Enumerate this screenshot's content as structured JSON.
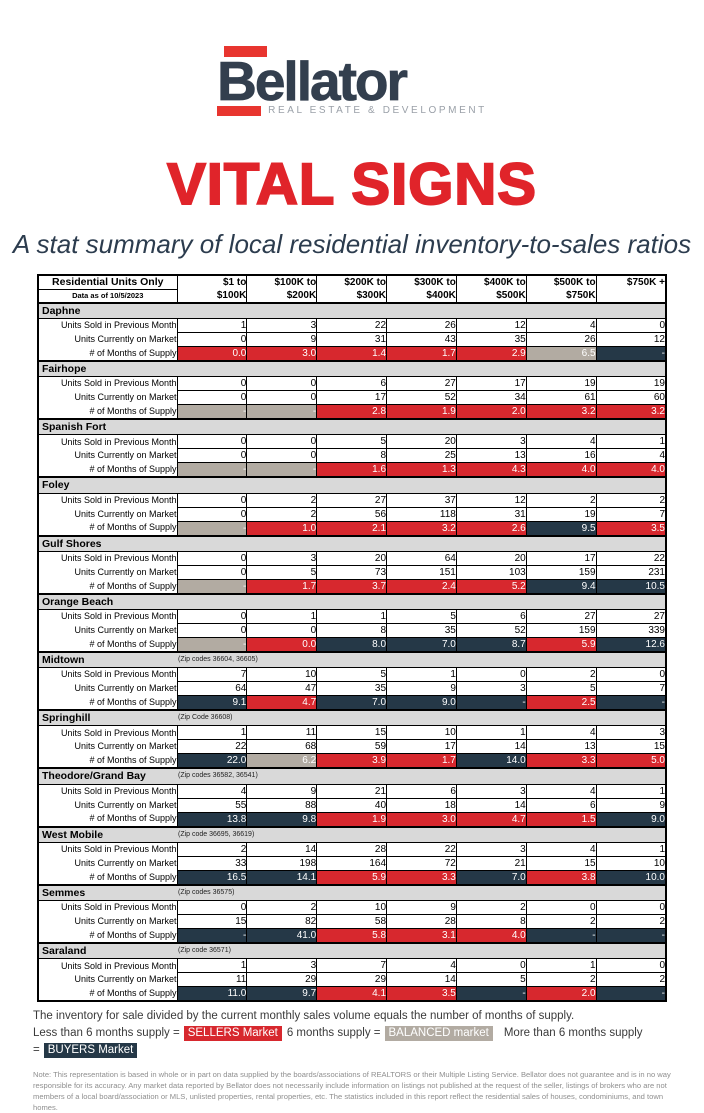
{
  "logo": {
    "name": "Bellator",
    "tagline": "REAL ESTATE & DEVELOPMENT"
  },
  "title": "VITAL SIGNS",
  "subtitle": "A stat summary of local residential inventory-to-sales ratios",
  "colors": {
    "sellers_red": "#d7282e",
    "balanced_tan": "#b2aba2",
    "buyers_navy": "#253847",
    "section_gray": "#d9d9d9",
    "brand_red": "#e0242a",
    "brand_navy": "#333f4e"
  },
  "table": {
    "corner_title": "Residential Units Only",
    "corner_subtitle": "Data as of 10/5/2023",
    "columns": [
      [
        "$1 to",
        "$100K"
      ],
      [
        "$100K to",
        "$200K"
      ],
      [
        "$200K to",
        "$300K"
      ],
      [
        "$300K to",
        "$400K"
      ],
      [
        "$400K to",
        "$500K"
      ],
      [
        "$500K to",
        "$750K"
      ],
      [
        "$750K +",
        ""
      ]
    ],
    "row_labels": [
      "Units Sold in Previous Month",
      "Units Currently on Market",
      "# of Months of Supply"
    ],
    "sections": [
      {
        "name": "Daphne",
        "zip": "",
        "sold": [
          1,
          3,
          22,
          26,
          12,
          4,
          0
        ],
        "market": [
          0,
          9,
          31,
          43,
          35,
          26,
          12
        ],
        "supply": [
          {
            "v": "0.0",
            "m": "sellers"
          },
          {
            "v": "3.0",
            "m": "sellers"
          },
          {
            "v": "1.4",
            "m": "sellers"
          },
          {
            "v": "1.7",
            "m": "sellers"
          },
          {
            "v": "2.9",
            "m": "sellers"
          },
          {
            "v": "6.5",
            "m": "balanced"
          },
          {
            "v": "-",
            "m": "buyers"
          }
        ]
      },
      {
        "name": "Fairhope",
        "zip": "",
        "sold": [
          0,
          0,
          6,
          27,
          17,
          19,
          19
        ],
        "market": [
          0,
          0,
          17,
          52,
          34,
          61,
          60
        ],
        "supply": [
          {
            "v": "-",
            "m": "balanced"
          },
          {
            "v": "-",
            "m": "balanced"
          },
          {
            "v": "2.8",
            "m": "sellers"
          },
          {
            "v": "1.9",
            "m": "sellers"
          },
          {
            "v": "2.0",
            "m": "sellers"
          },
          {
            "v": "3.2",
            "m": "sellers"
          },
          {
            "v": "3.2",
            "m": "sellers"
          }
        ]
      },
      {
        "name": "Spanish Fort",
        "zip": "",
        "sold": [
          0,
          0,
          5,
          20,
          3,
          4,
          1
        ],
        "market": [
          0,
          0,
          8,
          25,
          13,
          16,
          4
        ],
        "supply": [
          {
            "v": "-",
            "m": "balanced"
          },
          {
            "v": "-",
            "m": "balanced"
          },
          {
            "v": "1.6",
            "m": "sellers"
          },
          {
            "v": "1.3",
            "m": "sellers"
          },
          {
            "v": "4.3",
            "m": "sellers"
          },
          {
            "v": "4.0",
            "m": "sellers"
          },
          {
            "v": "4.0",
            "m": "sellers"
          }
        ]
      },
      {
        "name": "Foley",
        "zip": "",
        "sold": [
          0,
          2,
          27,
          37,
          12,
          2,
          2
        ],
        "market": [
          0,
          2,
          56,
          118,
          31,
          19,
          7
        ],
        "supply": [
          {
            "v": "-",
            "m": "balanced"
          },
          {
            "v": "1.0",
            "m": "sellers"
          },
          {
            "v": "2.1",
            "m": "sellers"
          },
          {
            "v": "3.2",
            "m": "sellers"
          },
          {
            "v": "2.6",
            "m": "sellers"
          },
          {
            "v": "9.5",
            "m": "buyers"
          },
          {
            "v": "3.5",
            "m": "sellers"
          }
        ]
      },
      {
        "name": "Gulf Shores",
        "zip": "",
        "sold": [
          0,
          3,
          20,
          64,
          20,
          17,
          22
        ],
        "market": [
          0,
          5,
          73,
          151,
          103,
          159,
          231
        ],
        "supply": [
          {
            "v": "-",
            "m": "balanced"
          },
          {
            "v": "1.7",
            "m": "sellers"
          },
          {
            "v": "3.7",
            "m": "sellers"
          },
          {
            "v": "2.4",
            "m": "sellers"
          },
          {
            "v": "5.2",
            "m": "sellers"
          },
          {
            "v": "9.4",
            "m": "buyers"
          },
          {
            "v": "10.5",
            "m": "buyers"
          }
        ]
      },
      {
        "name": "Orange Beach",
        "zip": "",
        "sold": [
          0,
          1,
          1,
          5,
          6,
          27,
          27
        ],
        "market": [
          0,
          0,
          8,
          35,
          52,
          159,
          339
        ],
        "supply": [
          {
            "v": "-",
            "m": "balanced"
          },
          {
            "v": "0.0",
            "m": "sellers"
          },
          {
            "v": "8.0",
            "m": "buyers"
          },
          {
            "v": "7.0",
            "m": "buyers"
          },
          {
            "v": "8.7",
            "m": "buyers"
          },
          {
            "v": "5.9",
            "m": "sellers"
          },
          {
            "v": "12.6",
            "m": "buyers"
          }
        ]
      },
      {
        "name": "Midtown",
        "zip": "(Zip codes 36604, 36605)",
        "sold": [
          7,
          10,
          5,
          1,
          0,
          2,
          0
        ],
        "market": [
          64,
          47,
          35,
          9,
          3,
          5,
          7
        ],
        "supply": [
          {
            "v": "9.1",
            "m": "buyers"
          },
          {
            "v": "4.7",
            "m": "sellers"
          },
          {
            "v": "7.0",
            "m": "buyers"
          },
          {
            "v": "9.0",
            "m": "buyers"
          },
          {
            "v": "-",
            "m": "buyers"
          },
          {
            "v": "2.5",
            "m": "sellers"
          },
          {
            "v": "-",
            "m": "buyers"
          }
        ]
      },
      {
        "name": "Springhill",
        "zip": "(Zip Code 36608)",
        "sold": [
          1,
          11,
          15,
          10,
          1,
          4,
          3
        ],
        "market": [
          22,
          68,
          59,
          17,
          14,
          13,
          15
        ],
        "supply": [
          {
            "v": "22.0",
            "m": "buyers"
          },
          {
            "v": "6.2",
            "m": "balanced"
          },
          {
            "v": "3.9",
            "m": "sellers"
          },
          {
            "v": "1.7",
            "m": "sellers"
          },
          {
            "v": "14.0",
            "m": "buyers"
          },
          {
            "v": "3.3",
            "m": "sellers"
          },
          {
            "v": "5.0",
            "m": "sellers"
          }
        ]
      },
      {
        "name": "Theodore/Grand Bay",
        "zip": "(Zip codes 36582, 36541)",
        "sold": [
          4,
          9,
          21,
          6,
          3,
          4,
          1
        ],
        "market": [
          55,
          88,
          40,
          18,
          14,
          6,
          9
        ],
        "supply": [
          {
            "v": "13.8",
            "m": "buyers"
          },
          {
            "v": "9.8",
            "m": "buyers"
          },
          {
            "v": "1.9",
            "m": "sellers"
          },
          {
            "v": "3.0",
            "m": "sellers"
          },
          {
            "v": "4.7",
            "m": "sellers"
          },
          {
            "v": "1.5",
            "m": "sellers"
          },
          {
            "v": "9.0",
            "m": "buyers"
          }
        ]
      },
      {
        "name": "West Mobile",
        "zip": "(Zip code 36695, 36619)",
        "sold": [
          2,
          14,
          28,
          22,
          3,
          4,
          1
        ],
        "market": [
          33,
          198,
          164,
          72,
          21,
          15,
          10
        ],
        "supply": [
          {
            "v": "16.5",
            "m": "buyers"
          },
          {
            "v": "14.1",
            "m": "buyers"
          },
          {
            "v": "5.9",
            "m": "sellers"
          },
          {
            "v": "3.3",
            "m": "sellers"
          },
          {
            "v": "7.0",
            "m": "buyers"
          },
          {
            "v": "3.8",
            "m": "sellers"
          },
          {
            "v": "10.0",
            "m": "buyers"
          }
        ]
      },
      {
        "name": "Semmes",
        "zip": "(Zip codes 36575)",
        "sold": [
          0,
          2,
          10,
          9,
          2,
          0,
          0
        ],
        "market": [
          15,
          82,
          58,
          28,
          8,
          2,
          2
        ],
        "supply": [
          {
            "v": "-",
            "m": "buyers"
          },
          {
            "v": "41.0",
            "m": "buyers"
          },
          {
            "v": "5.8",
            "m": "sellers"
          },
          {
            "v": "3.1",
            "m": "sellers"
          },
          {
            "v": "4.0",
            "m": "sellers"
          },
          {
            "v": "-",
            "m": "buyers"
          },
          {
            "v": "-",
            "m": "buyers"
          }
        ]
      },
      {
        "name": "Saraland",
        "zip": "(Zip code 36571)",
        "sold": [
          1,
          3,
          7,
          4,
          0,
          1,
          0
        ],
        "market": [
          11,
          29,
          29,
          14,
          5,
          2,
          2
        ],
        "supply": [
          {
            "v": "11.0",
            "m": "buyers"
          },
          {
            "v": "9.7",
            "m": "buyers"
          },
          {
            "v": "4.1",
            "m": "sellers"
          },
          {
            "v": "3.5",
            "m": "sellers"
          },
          {
            "v": "-",
            "m": "buyers"
          },
          {
            "v": "2.0",
            "m": "sellers"
          },
          {
            "v": "-",
            "m": "buyers"
          }
        ]
      }
    ]
  },
  "legend": {
    "supply_note": "The inventory for sale divided by the current monthly sales volume equals the number of months of supply.",
    "less_text": "Less than 6 months supply =",
    "sellers_label": "SELLERS Market",
    "six_text": "6 months supply =",
    "balanced_label": "BALANCED market",
    "more_text": "More than 6 months supply =",
    "buyers_label": "BUYERS Market"
  },
  "note": "Note: This representation is based in whole or in part on data supplied by the boards/associations of REALTORS or their Multiple Listing Service. Bellator does not guarantee and is in no way responsible for its accuracy. Any market data reported by Bellator does not necessarily include information on listings not published at the request of the seller, listings of brokers who are not members of a local board/association or MLS, unlisted properties, rental properties, etc. The statistics included in this report reflect the residential sales of houses, condominiums, and town homes."
}
